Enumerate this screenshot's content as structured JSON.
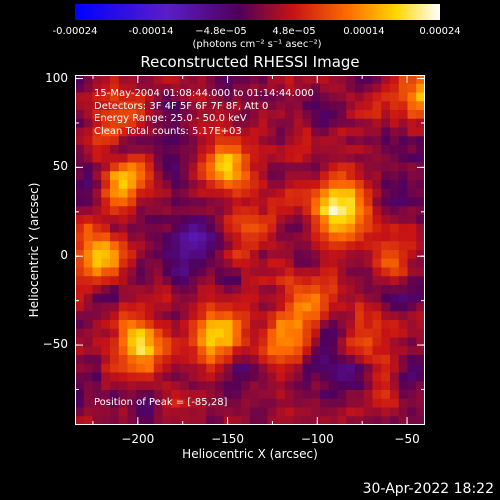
{
  "colorbar": {
    "ticks": [
      "-0.00024",
      "-0.00014",
      "−4.8e−05",
      "4.8e−05",
      "0.00014",
      "0.00024"
    ],
    "tick_values": [
      -0.00024,
      -0.00014,
      -4.8e-05,
      4.8e-05,
      0.00014,
      0.00024
    ],
    "range": [
      -0.00024,
      0.00024
    ],
    "units_label": "(photons cm⁻² s⁻¹ asec⁻²)",
    "colormap": "blue-purple-red-orange-yellow-white"
  },
  "chart_data": {
    "type": "heatmap",
    "title": "Reconstructed RHESSI Image",
    "xlabel": "Heliocentric X (arcsec)",
    "ylabel": "Heliocentric Y (arcsec)",
    "xlim": [
      -235,
      -40
    ],
    "ylim": [
      -95,
      102
    ],
    "x_ticks": [
      -200,
      -150,
      -100,
      -50
    ],
    "y_ticks": [
      -50,
      0,
      50,
      100
    ],
    "x_tick_labels": [
      "−200",
      "−150",
      "−100",
      "−50"
    ],
    "y_tick_labels": [
      "−50",
      "0",
      "50",
      "100"
    ],
    "peak": [
      -85,
      28
    ],
    "bright_sources": [
      {
        "x": -85,
        "y": 28,
        "level": 0.00024
      },
      {
        "x": -150,
        "y": 50,
        "level": 0.00016
      },
      {
        "x": -205,
        "y": 42,
        "level": 0.00013
      },
      {
        "x": -225,
        "y": 0,
        "level": 0.00015
      },
      {
        "x": -200,
        "y": -50,
        "level": 0.00018
      },
      {
        "x": -155,
        "y": -45,
        "level": 0.00016
      },
      {
        "x": -115,
        "y": -50,
        "level": 0.00013
      },
      {
        "x": -70,
        "y": -50,
        "level": 0.00012
      },
      {
        "x": -140,
        "y": 10,
        "level": 0.00011
      },
      {
        "x": -105,
        "y": -25,
        "level": 0.0001
      },
      {
        "x": -45,
        "y": 88,
        "level": 0.00012
      },
      {
        "x": -215,
        "y": 85,
        "level": 0.0001
      },
      {
        "x": -60,
        "y": 5,
        "level": 0.0001
      }
    ],
    "dim_regions": [
      {
        "x": -95,
        "y": -60,
        "level": -8e-05
      },
      {
        "x": -165,
        "y": 5,
        "level": -6e-05
      },
      {
        "x": -55,
        "y": 45,
        "level": -5e-05
      }
    ]
  },
  "info_lines": [
    "15-May-2004 01:08:44.000 to 01:14:44.000",
    "Detectors: 3F 4F 5F 6F 7F 8F, Att 0",
    "Energy Range: 25.0 - 50.0 keV",
    "Clean  Total counts: 5.17E+03"
  ],
  "peak_label": "Position of Peak = [-85,28]",
  "footer_date": "30-Apr-2022 18:22"
}
